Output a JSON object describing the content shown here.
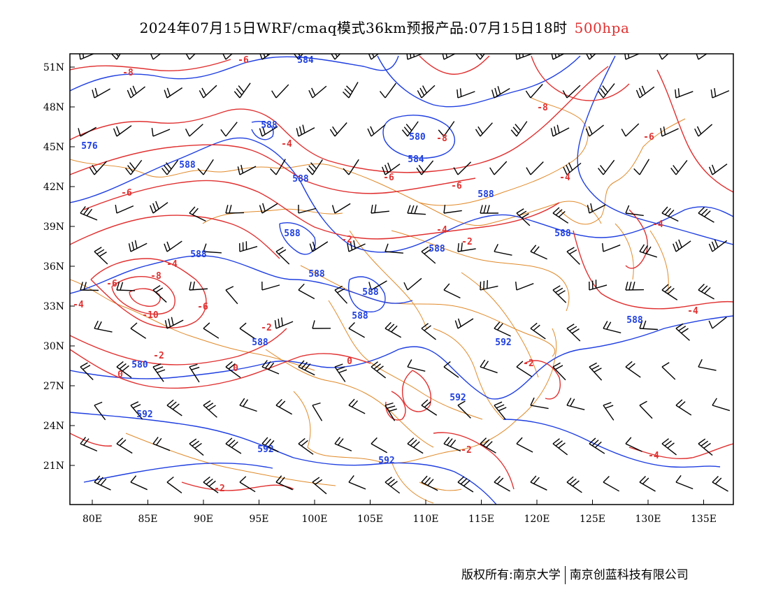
{
  "title": {
    "main": "2024年07月15日WRF/cmaq模式36km预报产品:07月15日18时",
    "level": "500hpa"
  },
  "footer": {
    "left": "版权所有:南京大学",
    "right": "南京创蓝科技有限公司"
  },
  "colors": {
    "height": "#1f3fe0",
    "temp": "#e03030",
    "boundary": "#e08a2a",
    "wind": "#000000",
    "frame": "#000000"
  },
  "axes": {
    "lat_labels": [
      "51N",
      "48N",
      "45N",
      "42N",
      "39N",
      "36N",
      "33N",
      "30N",
      "27N",
      "24N",
      "21N"
    ],
    "lon_labels": [
      "80E",
      "85E",
      "90E",
      "95E",
      "100E",
      "105E",
      "110E",
      "115E",
      "120E",
      "125E",
      "130E",
      "135E"
    ]
  },
  "height_labels": [
    "584",
    "588",
    "588",
    "588",
    "588",
    "588",
    "588",
    "588",
    "588",
    "588",
    "580",
    "576",
    "580",
    "584",
    "588",
    "588",
    "588",
    "592",
    "592",
    "592",
    "592",
    "592",
    "588"
  ],
  "temp_labels": [
    "-8",
    "-6",
    "-6",
    "-4",
    "-4",
    "-6",
    "-8",
    "-6",
    "-6",
    "-8",
    "-4",
    "-4",
    "-2",
    "-2",
    "-4",
    "-6",
    "-8",
    "-10",
    "-6",
    "-4",
    "-2",
    "0",
    "0",
    "0",
    "-2",
    "-2",
    "-2",
    "-2",
    "-4",
    "-4"
  ]
}
